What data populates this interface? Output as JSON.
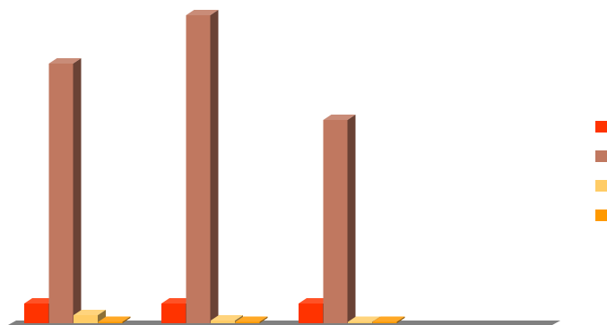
{
  "chart_data": {
    "type": "bar",
    "style": "3d-clustered-column",
    "categories": [
      "",
      "",
      ""
    ],
    "series": [
      {
        "color": "#FF3300",
        "values": [
          22,
          22,
          22
        ]
      },
      {
        "color": "#C07860",
        "values": [
          290,
          344,
          227
        ]
      },
      {
        "color": "#FFCC66",
        "values": [
          9,
          3,
          0
        ]
      },
      {
        "color": "#FF9900",
        "values": [
          0,
          0,
          0
        ]
      }
    ],
    "ylim": [
      0,
      344
    ],
    "grid": false,
    "legend_placement": "right"
  }
}
